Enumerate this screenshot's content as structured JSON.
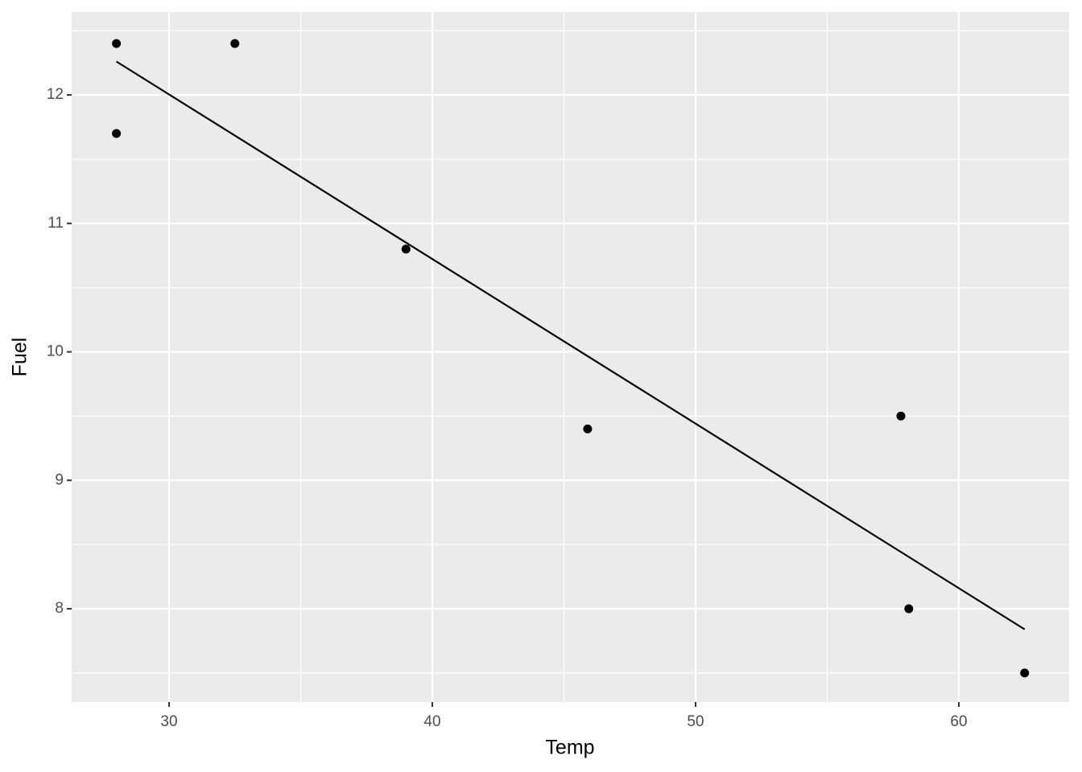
{
  "chart_data": {
    "type": "scatter",
    "x_label": "Temp",
    "y_label": "Fuel",
    "x": [
      28,
      28,
      32.5,
      39,
      45.9,
      57.8,
      58.1,
      62.5
    ],
    "values": [
      12.4,
      11.7,
      12.4,
      10.8,
      9.4,
      9.5,
      8.0,
      7.5
    ],
    "color": "#000000",
    "fit_line": {
      "x": [
        28,
        62.5
      ],
      "values": [
        12.26,
        7.84
      ],
      "color": "#000000"
    },
    "xlim": [
      26.3,
      64.19
    ],
    "ylim": [
      7.274,
      12.645
    ],
    "xticks": [
      30,
      40,
      50,
      60
    ],
    "yticks": [
      8,
      9,
      10,
      11,
      12
    ],
    "xminor": [
      35,
      45,
      55
    ],
    "yminor": [
      7.5,
      8.5,
      9.5,
      10.5,
      11.5,
      12.5
    ],
    "grid": true,
    "panel_color": "#ebebeb"
  }
}
